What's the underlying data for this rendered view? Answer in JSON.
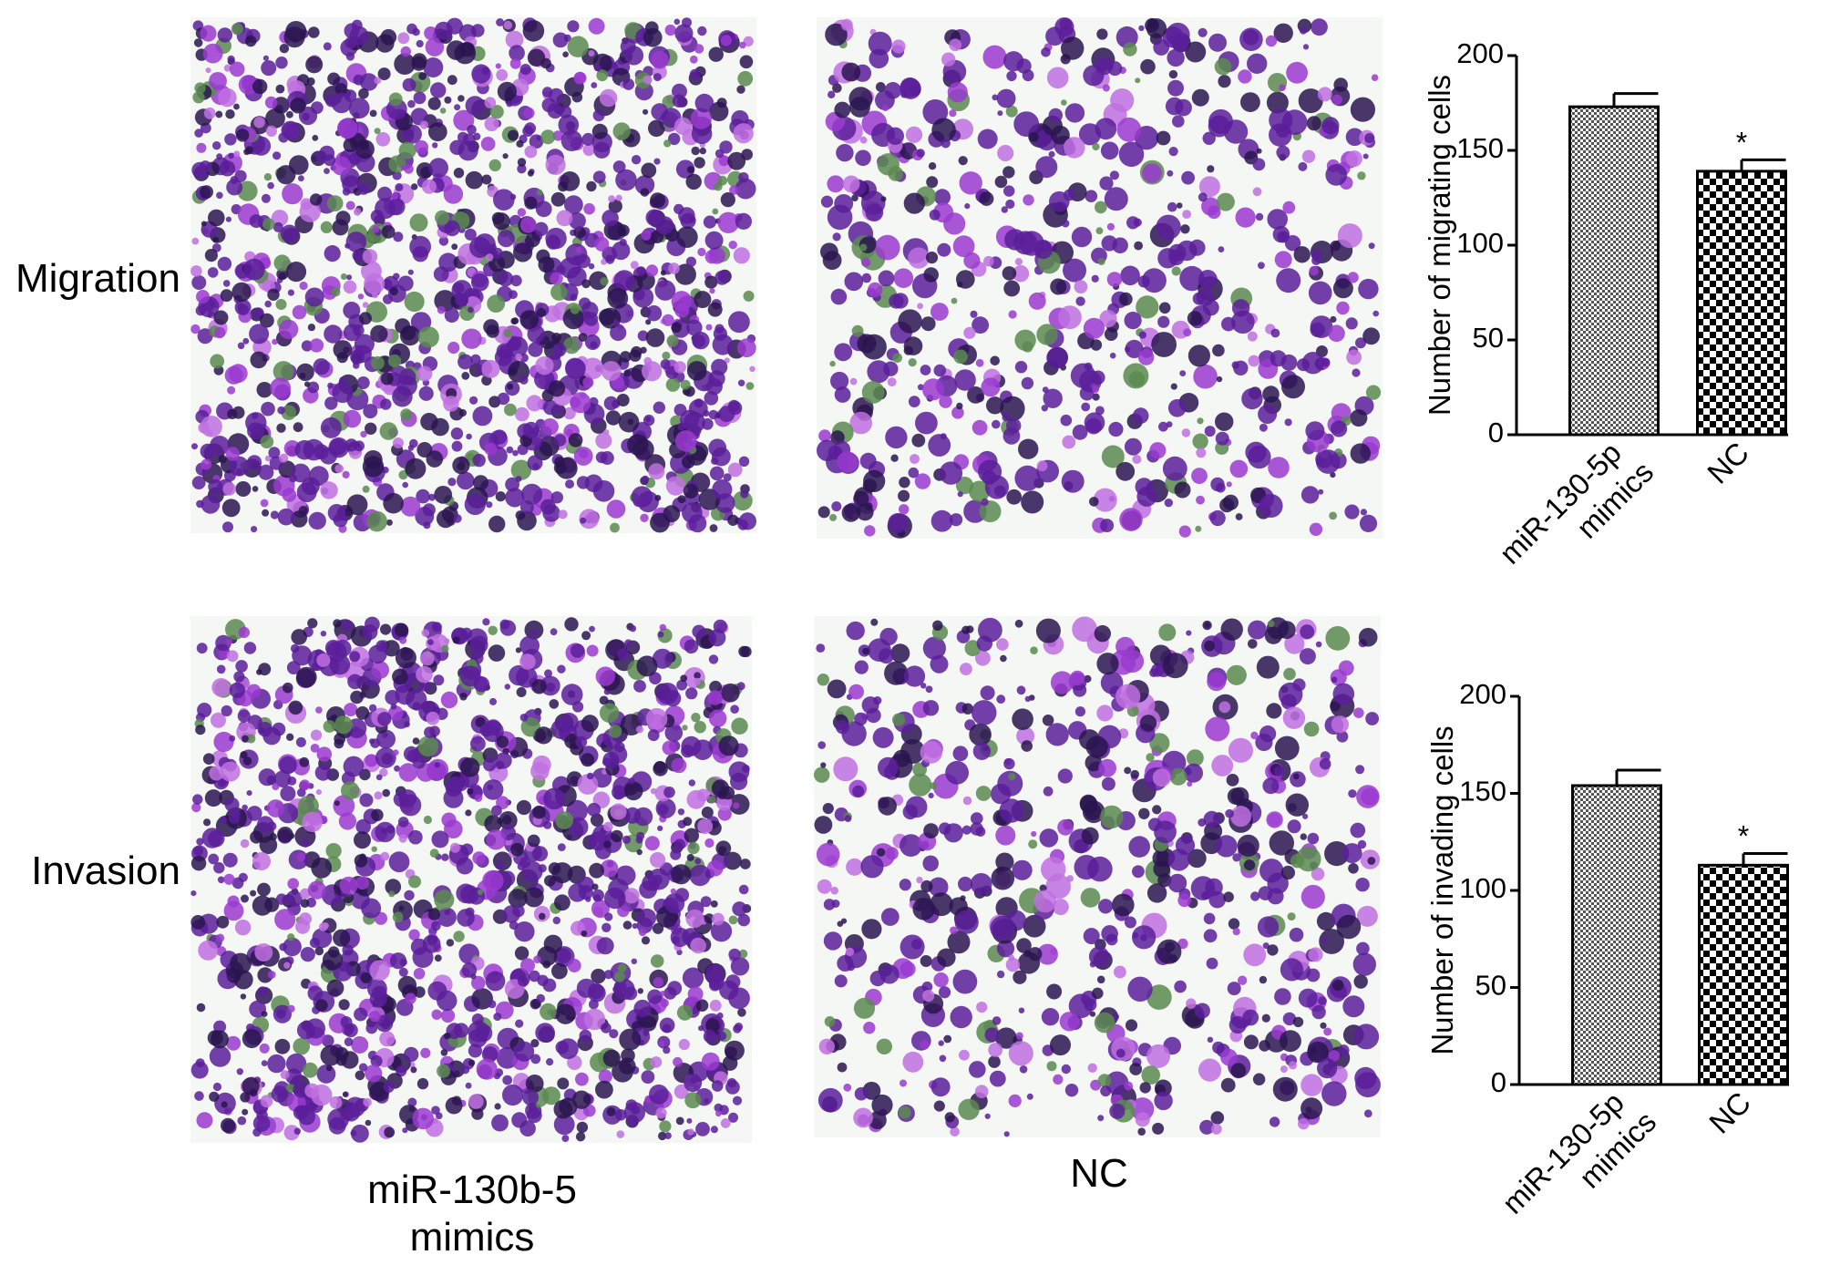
{
  "row_labels": [
    "Migration",
    "Invasion"
  ],
  "column_labels": [
    "miR-130b-5 mimics",
    "NC"
  ],
  "chart_data": [
    {
      "type": "bar",
      "ylabel": "Number of migrating cells",
      "categories": [
        "miR-130-5p mimics",
        "NC"
      ],
      "values": [
        173,
        139
      ],
      "errors": [
        7,
        6
      ],
      "patterns": [
        "fine-check",
        "coarse-check"
      ],
      "annotations": [
        null,
        "*"
      ],
      "ylim": [
        0,
        200
      ],
      "yticks": [
        0,
        50,
        100,
        150,
        200
      ]
    },
    {
      "type": "bar",
      "ylabel": "Number of invading cells",
      "categories": [
        "miR-130-5p mimics",
        "NC"
      ],
      "values": [
        154,
        113
      ],
      "errors": [
        8,
        6
      ],
      "patterns": [
        "fine-check",
        "coarse-check"
      ],
      "annotations": [
        null,
        "*"
      ],
      "ylim": [
        0,
        200
      ],
      "yticks": [
        0,
        50,
        100,
        150,
        200
      ]
    }
  ]
}
